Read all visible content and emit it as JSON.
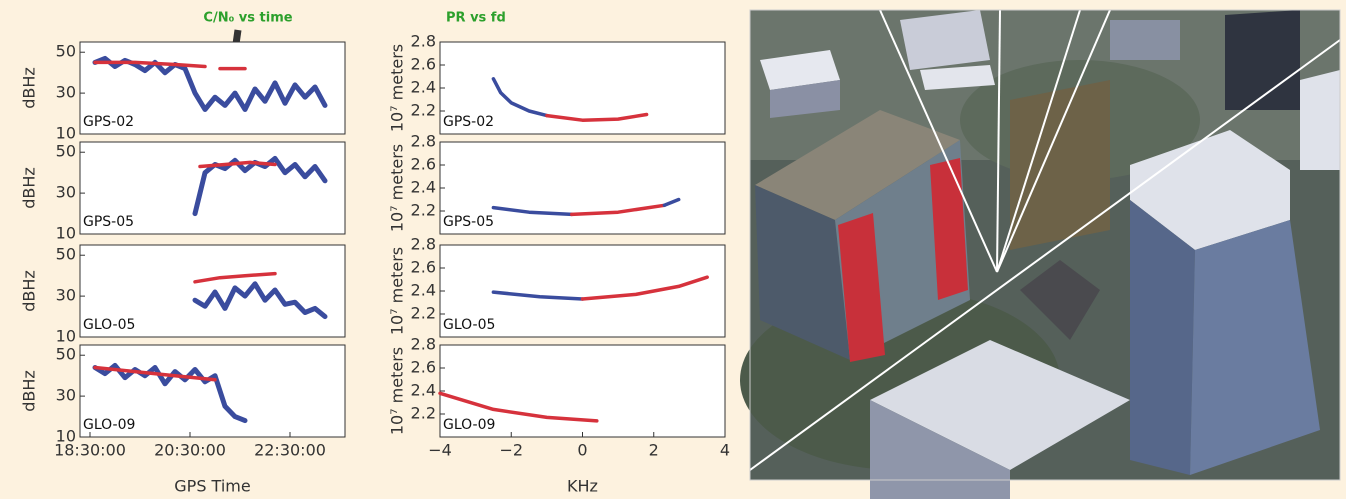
{
  "chart_data": [
    {
      "type": "line",
      "label": "GPS-02",
      "ylabel": "dBHz",
      "annotation": "C/N₀ vs time",
      "xlim": [
        18.3,
        23.6
      ],
      "ylim": [
        10,
        55
      ],
      "yticks": [
        10,
        30,
        50
      ],
      "series": [
        {
          "color": "#3a4c9e",
          "x": [
            18.6,
            18.8,
            19.0,
            19.2,
            19.4,
            19.6,
            19.8,
            20.0,
            20.2,
            20.4,
            20.6,
            20.8,
            21.0,
            21.2,
            21.4,
            21.6,
            21.8,
            22.0,
            22.2,
            22.4,
            22.6,
            22.8,
            23.0,
            23.2
          ],
          "values": [
            45,
            47,
            43,
            46,
            44,
            41,
            45,
            40,
            44,
            42,
            30,
            22,
            28,
            24,
            30,
            22,
            32,
            26,
            35,
            25,
            34,
            28,
            33,
            24
          ]
        },
        {
          "color": "#d6323c",
          "x": [
            18.6,
            19.4,
            20.2,
            20.8,
            20.9,
            21.1,
            21.6
          ],
          "values": [
            45,
            45,
            44,
            43,
            null,
            42,
            42
          ]
        }
      ]
    },
    {
      "type": "line",
      "label": "GPS-05",
      "ylabel": "dBHz",
      "xlim": [
        18.3,
        23.6
      ],
      "ylim": [
        10,
        55
      ],
      "yticks": [
        10,
        30,
        50
      ],
      "series": [
        {
          "color": "#3a4c9e",
          "x": [
            20.6,
            20.8,
            21.0,
            21.2,
            21.4,
            21.6,
            21.8,
            22.0,
            22.2,
            22.4,
            22.6,
            22.8,
            23.0,
            23.2
          ],
          "values": [
            20,
            40,
            44,
            42,
            46,
            41,
            45,
            43,
            47,
            40,
            44,
            38,
            43,
            36
          ]
        },
        {
          "color": "#d6323c",
          "x": [
            20.7,
            21.2,
            21.7,
            22.2
          ],
          "values": [
            43,
            44,
            45,
            44
          ]
        }
      ]
    },
    {
      "type": "line",
      "label": "GLO-05",
      "ylabel": "dBHz",
      "xlim": [
        18.3,
        23.6
      ],
      "ylim": [
        10,
        55
      ],
      "yticks": [
        10,
        30,
        50
      ],
      "series": [
        {
          "color": "#3a4c9e",
          "x": [
            20.6,
            20.8,
            21.0,
            21.2,
            21.4,
            21.6,
            21.8,
            22.0,
            22.2,
            22.4,
            22.6,
            22.8,
            23.0,
            23.2
          ],
          "values": [
            28,
            25,
            32,
            24,
            34,
            30,
            36,
            28,
            33,
            26,
            27,
            22,
            24,
            20
          ]
        },
        {
          "color": "#d6323c",
          "x": [
            20.6,
            21.1,
            21.6,
            22.2
          ],
          "values": [
            37,
            39,
            40,
            41
          ]
        }
      ]
    },
    {
      "type": "line",
      "label": "GLO-09",
      "ylabel": "dBHz",
      "xlabel": "GPS Time",
      "xlim": [
        18.3,
        23.6
      ],
      "ylim": [
        10,
        55
      ],
      "yticks": [
        10,
        30,
        50
      ],
      "xticks": [
        {
          "value": 18.5,
          "label": "18:30:00"
        },
        {
          "value": 20.5,
          "label": "20:30:00"
        },
        {
          "value": 22.5,
          "label": "22:30:00"
        }
      ],
      "series": [
        {
          "color": "#3a4c9e",
          "x": [
            18.6,
            18.8,
            19.0,
            19.2,
            19.4,
            19.6,
            19.8,
            20.0,
            20.2,
            20.4,
            20.6,
            20.8,
            21.0,
            21.2,
            21.4,
            21.6
          ],
          "values": [
            44,
            41,
            45,
            39,
            43,
            40,
            44,
            36,
            42,
            38,
            43,
            37,
            40,
            25,
            20,
            18
          ]
        },
        {
          "color": "#d6323c",
          "x": [
            18.6,
            19.4,
            20.2,
            21.0
          ],
          "values": [
            44,
            42,
            40,
            38
          ]
        }
      ]
    },
    {
      "type": "line",
      "label": "GPS-02",
      "ylabel": "10⁷ meters",
      "annotation": "PR vs fd",
      "xlim": [
        -4,
        4
      ],
      "ylim": [
        2.0,
        2.8
      ],
      "yticks": [
        2.2,
        2.4,
        2.6,
        2.8
      ],
      "series": [
        {
          "color": "#3a4c9e",
          "x": [
            -2.5,
            -2.3,
            -2,
            -1.5,
            -1
          ],
          "values": [
            2.48,
            2.36,
            2.27,
            2.2,
            2.16
          ]
        },
        {
          "color": "#d6323c",
          "x": [
            -1,
            0,
            1,
            1.8
          ],
          "values": [
            2.16,
            2.12,
            2.13,
            2.17
          ]
        }
      ]
    },
    {
      "type": "line",
      "label": "GPS-05",
      "ylabel": "10⁷ meters",
      "xlim": [
        -4,
        4
      ],
      "ylim": [
        2.0,
        2.8
      ],
      "yticks": [
        2.2,
        2.4,
        2.6,
        2.8
      ],
      "series": [
        {
          "color": "#3a4c9e",
          "x": [
            -2.5,
            -1.5,
            -0.3
          ],
          "values": [
            2.23,
            2.19,
            2.17
          ]
        },
        {
          "color": "#d6323c",
          "x": [
            -0.3,
            1,
            2.3
          ],
          "values": [
            2.17,
            2.19,
            2.25
          ]
        },
        {
          "color": "#3a4c9e",
          "x": [
            2.3,
            2.7
          ],
          "values": [
            2.25,
            2.3
          ]
        }
      ]
    },
    {
      "type": "line",
      "label": "GLO-05",
      "ylabel": "10⁷ meters",
      "xlim": [
        -4,
        4
      ],
      "ylim": [
        2.0,
        2.8
      ],
      "yticks": [
        2.2,
        2.4,
        2.6,
        2.8
      ],
      "series": [
        {
          "color": "#3a4c9e",
          "x": [
            -2.5,
            -1.2,
            0
          ],
          "values": [
            2.39,
            2.35,
            2.33
          ]
        },
        {
          "color": "#d6323c",
          "x": [
            0,
            1.5,
            2.7,
            3.5
          ],
          "values": [
            2.33,
            2.37,
            2.44,
            2.52
          ]
        }
      ]
    },
    {
      "type": "line",
      "label": "GLO-09",
      "ylabel": "10⁷ meters",
      "xlabel": "KHz",
      "xlim": [
        -4,
        4
      ],
      "ylim": [
        2.0,
        2.8
      ],
      "yticks": [
        2.2,
        2.4,
        2.6,
        2.8
      ],
      "xticks": [
        {
          "value": -4,
          "label": "−4"
        },
        {
          "value": -2,
          "label": "−2"
        },
        0,
        2,
        4
      ],
      "series": [
        {
          "color": "#d6323c",
          "x": [
            -4,
            -2.5,
            -1,
            0.4
          ],
          "values": [
            2.38,
            2.24,
            2.17,
            2.14
          ]
        }
      ]
    }
  ]
}
